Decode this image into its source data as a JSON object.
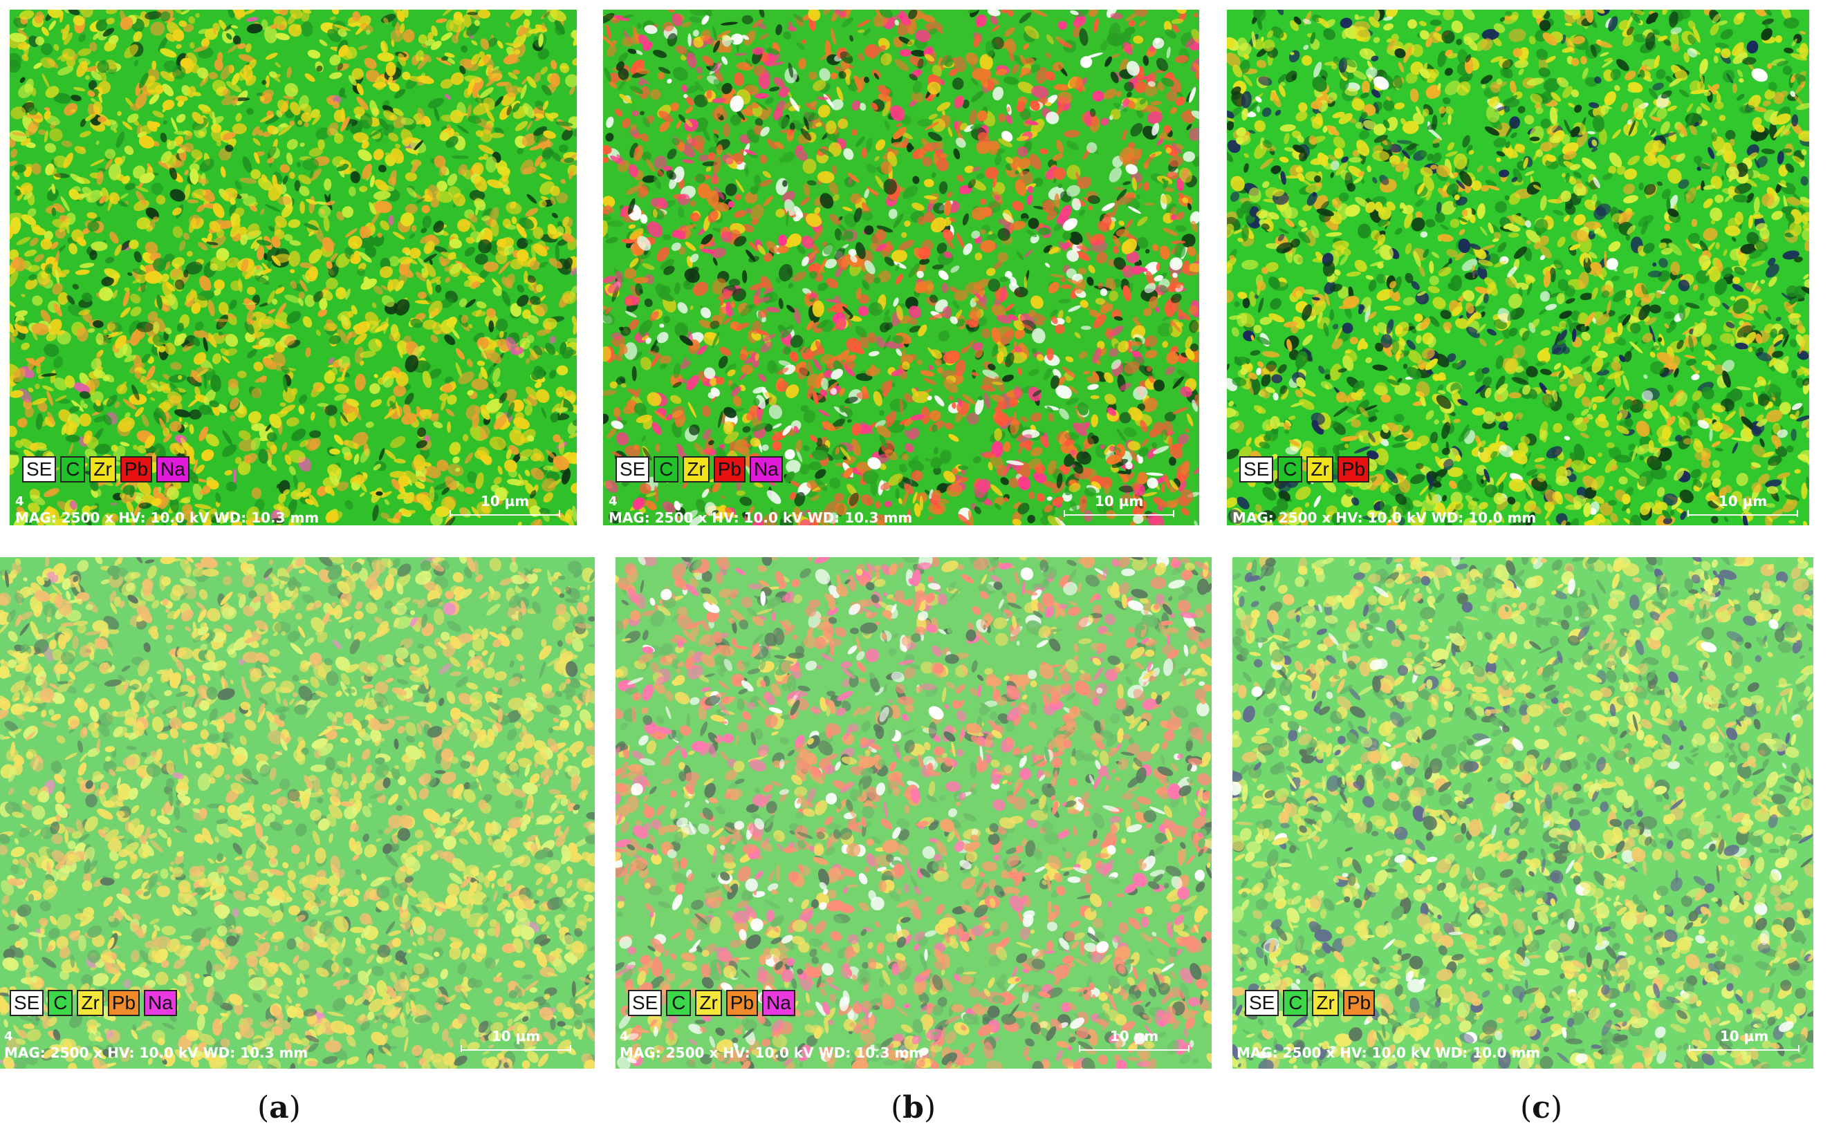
{
  "panels": [
    {
      "id": "a-top",
      "legend": [
        {
          "label": "SE",
          "color": "#ffffff"
        },
        {
          "label": "C",
          "color": "#22c22a"
        },
        {
          "label": "Zr",
          "color": "#f2e21a"
        },
        {
          "label": "Pb",
          "color": "#e81010"
        },
        {
          "label": "Na",
          "color": "#e01ad8"
        }
      ],
      "index": "4",
      "info": "MAG: 2500 x  HV: 10.0 kV  WD: 10.3 mm",
      "scale": "10 µm"
    },
    {
      "id": "b-top",
      "legend": [
        {
          "label": "SE",
          "color": "#ffffff"
        },
        {
          "label": "C",
          "color": "#22c22a"
        },
        {
          "label": "Zr",
          "color": "#f2e21a"
        },
        {
          "label": "Pb",
          "color": "#e81010"
        },
        {
          "label": "Na",
          "color": "#e01ad8"
        }
      ],
      "index": "4",
      "info": "MAG: 2500 x  HV: 10.0 kV  WD: 10.3 mm",
      "scale": "10 µm"
    },
    {
      "id": "c-top",
      "legend": [
        {
          "label": "SE",
          "color": "#ffffff"
        },
        {
          "label": "C",
          "color": "#22c22a"
        },
        {
          "label": "Zr",
          "color": "#f2e21a"
        },
        {
          "label": "Pb",
          "color": "#e81010"
        }
      ],
      "index": "",
      "info": "MAG: 2500 x  HV: 10.0 kV  WD: 10.0 mm",
      "scale": "10 µm"
    },
    {
      "id": "a-bottom",
      "legend": [
        {
          "label": "SE",
          "color": "#ffffff"
        },
        {
          "label": "C",
          "color": "#3cd84a"
        },
        {
          "label": "Zr",
          "color": "#f5e63a"
        },
        {
          "label": "Pb",
          "color": "#f08a2a"
        },
        {
          "label": "Na",
          "color": "#e83ae0"
        }
      ],
      "index": "4",
      "info": "MAG: 2500 x  HV: 10.0 kV  WD: 10.3 mm",
      "scale": "10 µm"
    },
    {
      "id": "b-bottom",
      "legend": [
        {
          "label": "SE",
          "color": "#ffffff"
        },
        {
          "label": "C",
          "color": "#3cd84a"
        },
        {
          "label": "Zr",
          "color": "#f5e63a"
        },
        {
          "label": "Pb",
          "color": "#f08a2a"
        },
        {
          "label": "Na",
          "color": "#e83ae0"
        }
      ],
      "index": "4",
      "info": "MAG: 2500 x  HV: 10.0 kV  WD: 10.3 mm",
      "scale": "10 µm"
    },
    {
      "id": "c-bottom",
      "legend": [
        {
          "label": "SE",
          "color": "#ffffff"
        },
        {
          "label": "C",
          "color": "#3cd84a"
        },
        {
          "label": "Zr",
          "color": "#f5e63a"
        },
        {
          "label": "Pb",
          "color": "#f08a2a"
        }
      ],
      "index": "",
      "info": "MAG: 2500 x  HV: 10.0 kV  WD: 10.0 mm",
      "scale": "10 µm"
    }
  ],
  "captions": {
    "a": {
      "open": "(",
      "letter": "a",
      "close": ")"
    },
    "b": {
      "open": "(",
      "letter": "b",
      "close": ")"
    },
    "c": {
      "open": "(",
      "letter": "c",
      "close": ")"
    }
  }
}
